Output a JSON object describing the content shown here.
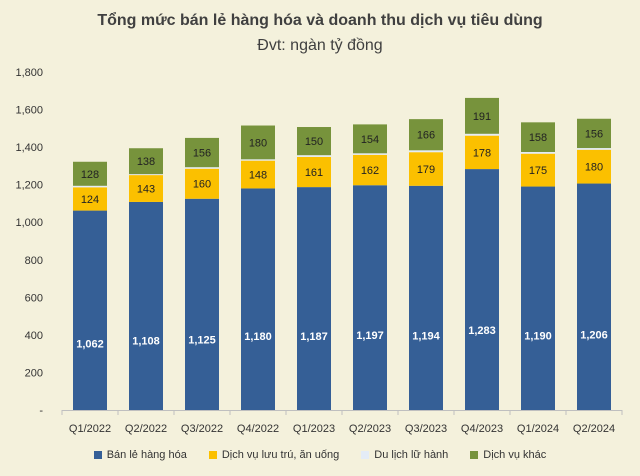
{
  "title": "Tổng mức bán lẻ hàng hóa và doanh thu dịch vụ tiêu dùng",
  "subtitle": "Đvt: ngàn tỷ đồng",
  "chart_data": {
    "type": "bar",
    "stacked": true,
    "title": "Tổng mức bán lẻ hàng hóa và doanh thu dịch vụ tiêu dùng",
    "subtitle": "Đvt: ngàn tỷ đồng",
    "categories": [
      "Q1/2022",
      "Q2/2022",
      "Q3/2022",
      "Q4/2022",
      "Q1/2023",
      "Q2/2023",
      "Q3/2023",
      "Q4/2023",
      "Q1/2024",
      "Q2/2024"
    ],
    "series": [
      {
        "name": "Bán lẻ hàng hóa",
        "color": "#355f96",
        "label_color": "#ffffff",
        "values": [
          1062,
          1108,
          1125,
          1180,
          1187,
          1197,
          1194,
          1283,
          1190,
          1206
        ]
      },
      {
        "name": "Dịch vụ lưu trú, ăn uống",
        "color": "#fbc000",
        "label_color": "#222222",
        "values": [
          124,
          143,
          160,
          148,
          161,
          162,
          179,
          178,
          175,
          180
        ]
      },
      {
        "name": "Du lịch lữ hành",
        "color": "#e4ecf6",
        "label_color": "#222222",
        "values": [
          8,
          5,
          8,
          7,
          9,
          8,
          10,
          10,
          9,
          9
        ]
      },
      {
        "name": "Dịch vụ khác",
        "color": "#77933c",
        "label_color": "#222222",
        "values": [
          128,
          138,
          156,
          180,
          150,
          154,
          166,
          191,
          158,
          156
        ]
      }
    ],
    "show_labels_for": [
      "Bán lẻ hàng hóa",
      "Dịch vụ lưu trú, ăn uống",
      "Dịch vụ khác"
    ],
    "ylim": [
      0,
      1800
    ],
    "yticks": [
      0,
      200,
      400,
      600,
      800,
      1000,
      1200,
      1400,
      1600,
      1800
    ],
    "ytick_labels": [
      "-",
      "200",
      "400",
      "600",
      "800",
      "1,000",
      "1,200",
      "1,400",
      "1,600",
      "1,800"
    ],
    "xlabel": "",
    "ylabel": "",
    "grid": false,
    "legend": "bottom"
  }
}
